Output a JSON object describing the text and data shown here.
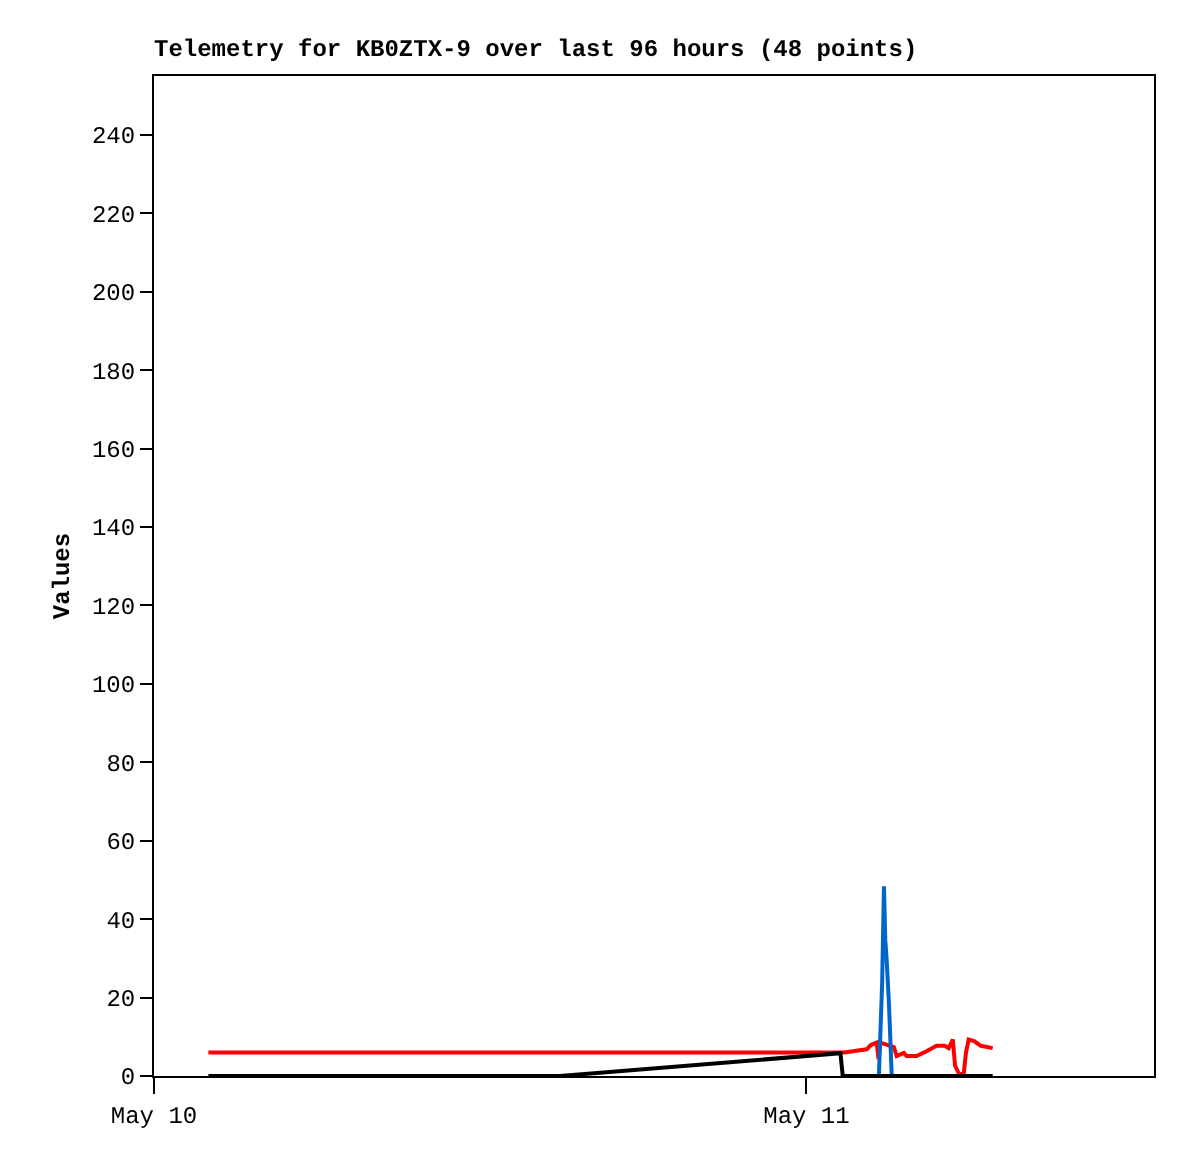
{
  "chart_data": {
    "type": "line",
    "title": "Telemetry for KB0ZTX-9 over last 96 hours (48 points)",
    "ylabel": "Values",
    "xlim": [
      "--05-10T00:00",
      "--05-11T12:47"
    ],
    "xticks": [
      {
        "value": "--05-10",
        "label": "May 10"
      },
      {
        "value": "--05-11",
        "label": "May 11"
      }
    ],
    "ylim": [
      0,
      255
    ],
    "yticks": [
      0,
      20,
      40,
      60,
      80,
      100,
      120,
      140,
      160,
      180,
      200,
      220,
      240
    ],
    "marker": "none",
    "line_style": "solid",
    "series": [
      {
        "color": "#ff0000",
        "x": [
          "--05-10T02:00",
          "--05-11T01:23",
          "--05-11T02:13",
          "--05-11T02:22",
          "--05-11T02:35",
          "--05-11T02:39",
          "--05-11T02:43",
          "--05-11T03:13",
          "--05-11T03:19",
          "--05-11T03:35",
          "--05-11T03:41",
          "--05-11T04:03",
          "--05-11T04:25",
          "--05-11T04:47",
          "--05-11T05:05",
          "--05-11T05:14",
          "--05-11T05:23",
          "--05-11T05:28",
          "--05-11T05:37",
          "--05-11T05:47",
          "--05-11T05:52",
          "--05-11T05:58",
          "--05-11T06:10",
          "--05-11T06:25",
          "--05-11T06:51"
        ],
        "values": [
          6,
          6,
          6.8,
          7.9,
          8.5,
          4.3,
          8.5,
          7.4,
          5.1,
          5.9,
          5.1,
          5.1,
          6.3,
          7.7,
          7.7,
          7.1,
          9.3,
          2.6,
          0.5,
          0.5,
          5.9,
          9.3,
          8.9,
          7.7,
          7.1
        ]
      },
      {
        "color": "#000000",
        "x": [
          "--05-10T02:00",
          "--05-10T14:56",
          "--05-11T01:15",
          "--05-11T01:20",
          "--05-11T06:51"
        ],
        "values": [
          0,
          0,
          5.8,
          0,
          0
        ]
      },
      {
        "color": "#0066cc",
        "x": [
          "--05-11T02:40",
          "--05-11T02:47",
          "--05-11T02:51",
          "--05-11T02:54",
          "--05-11T02:57",
          "--05-11T03:02",
          "--05-11T03:08"
        ],
        "values": [
          0.5,
          23.6,
          48.4,
          34.7,
          29.6,
          18.6,
          0.5
        ]
      }
    ]
  }
}
